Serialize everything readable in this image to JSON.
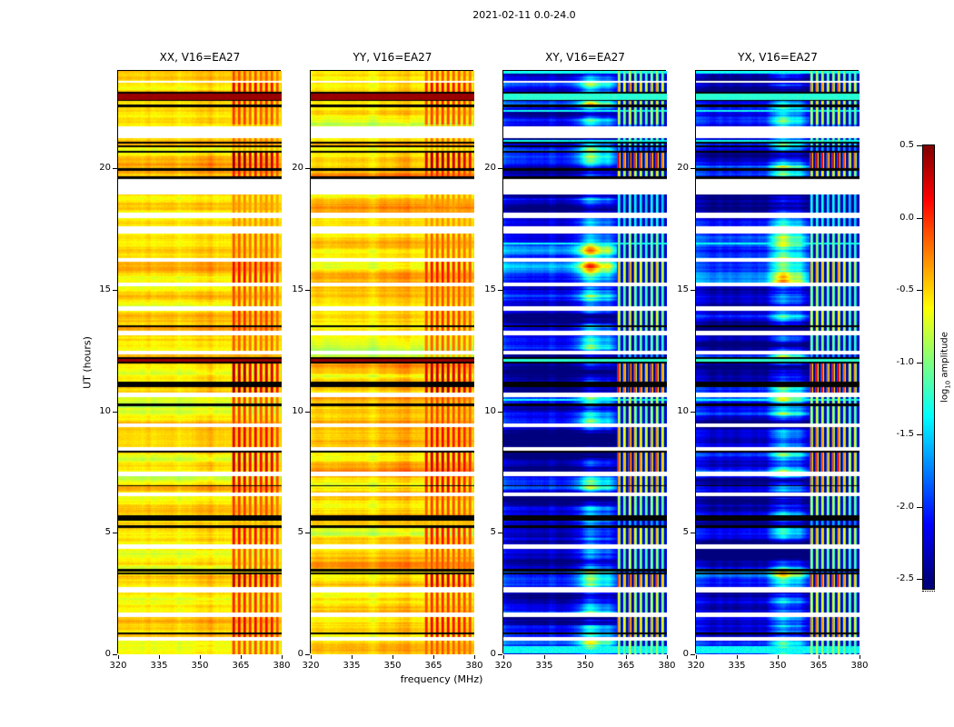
{
  "figure": {
    "title": "2021-02-11 0.0-24.0"
  },
  "chart_data": {
    "type": "heatmap",
    "title": "2021-02-11 0.0-24.0",
    "xlabel": "frequency (MHz)",
    "ylabel": "UT (hours)",
    "x_range": [
      320,
      380
    ],
    "x_ticks": [
      320,
      335,
      350,
      365,
      380
    ],
    "y_range": [
      0,
      24
    ],
    "y_ticks": [
      0,
      5,
      10,
      15,
      20
    ],
    "colormap": "jet",
    "panels": [
      {
        "title": "XX, V16=EA27",
        "pol": "XX"
      },
      {
        "title": "YY, V16=EA27",
        "pol": "YY"
      },
      {
        "title": "XY, V16=EA27",
        "pol": "XY"
      },
      {
        "title": "YX, V16=EA27",
        "pol": "YX"
      }
    ],
    "colorbar": {
      "label_prefix": "log",
      "label_sub": "10",
      "label_suffix": " amplitude",
      "range": [
        -2.5,
        0.5
      ],
      "ticks": [
        0.5,
        0.0,
        -0.5,
        -1.0,
        -1.5,
        -2.0,
        -2.5
      ]
    },
    "features": {
      "auto_background_level": -0.55,
      "cross_background_level": -2.35,
      "rfi_stripes": {
        "band_mhz": [
          361.5,
          380
        ],
        "first_mhz": 362.4,
        "spacing_mhz": 2.0
      },
      "cross_cyan_column_mhz": [
        346,
        360
      ],
      "white_bands": [
        [
          23.5,
          23.58
        ],
        [
          21.25,
          21.72
        ],
        [
          18.92,
          19.55
        ],
        [
          17.95,
          18.15
        ],
        [
          17.3,
          17.62
        ],
        [
          16.14,
          16.3
        ],
        [
          15.14,
          15.3
        ],
        [
          14.14,
          14.3
        ],
        [
          13.14,
          13.3
        ],
        [
          12.32,
          12.5
        ],
        [
          10.58,
          10.78
        ],
        [
          9.34,
          9.5
        ],
        [
          8.37,
          8.52
        ],
        [
          7.34,
          7.5
        ],
        [
          6.5,
          6.66
        ],
        [
          4.34,
          4.52
        ],
        [
          2.55,
          2.76
        ],
        [
          1.55,
          1.72
        ],
        [
          0.55,
          0.7
        ]
      ],
      "black_lines": [
        [
          23.08,
          23.14
        ],
        [
          22.76,
          22.82
        ],
        [
          22.5,
          22.6
        ],
        [
          21.0,
          21.07
        ],
        [
          20.86,
          20.93
        ],
        [
          20.62,
          20.7
        ],
        [
          19.9,
          20.0
        ],
        [
          19.57,
          19.66
        ],
        [
          13.47,
          13.53
        ],
        [
          12.16,
          12.21
        ],
        [
          11.96,
          12.02
        ],
        [
          11.0,
          11.2
        ],
        [
          10.22,
          10.32
        ],
        [
          8.3,
          8.37
        ],
        [
          6.9,
          6.96
        ],
        [
          5.5,
          5.72
        ],
        [
          5.2,
          5.3
        ],
        [
          3.42,
          3.5
        ],
        [
          3.28,
          3.35
        ],
        [
          0.83,
          0.89
        ]
      ],
      "red_rows": [
        [
          22.82,
          23.08
        ],
        [
          12.02,
          12.16
        ]
      ],
      "cyan_rows": [
        [
          23.9,
          24.0
        ],
        [
          22.3,
          22.38
        ],
        [
          21.08,
          21.15
        ],
        [
          16.85,
          16.92
        ],
        [
          10.42,
          10.5
        ],
        [
          0.05,
          0.35
        ]
      ],
      "rfi_time_bands": [
        [
          23.58,
          24.0,
          0.55
        ],
        [
          23.14,
          23.58,
          0.8
        ],
        [
          22.6,
          22.76,
          0.7
        ],
        [
          21.78,
          22.5,
          0.6
        ],
        [
          20.93,
          21.25,
          0.45
        ],
        [
          20.0,
          20.62,
          1.0
        ],
        [
          19.66,
          19.9,
          0.7
        ],
        [
          18.15,
          18.92,
          0.3
        ],
        [
          17.62,
          17.95,
          0.3
        ],
        [
          16.3,
          17.3,
          0.5
        ],
        [
          15.3,
          16.14,
          0.75
        ],
        [
          14.3,
          15.14,
          0.55
        ],
        [
          13.3,
          14.14,
          0.65
        ],
        [
          12.5,
          13.14,
          0.5
        ],
        [
          11.2,
          11.96,
          0.95
        ],
        [
          10.78,
          11.0,
          1.0
        ],
        [
          9.5,
          10.58,
          0.6
        ],
        [
          8.52,
          9.34,
          0.8
        ],
        [
          7.5,
          8.3,
          0.9
        ],
        [
          6.66,
          7.34,
          0.8
        ],
        [
          5.72,
          6.5,
          0.6
        ],
        [
          4.52,
          5.2,
          0.75
        ],
        [
          3.5,
          4.34,
          0.55
        ],
        [
          2.76,
          3.28,
          0.9
        ],
        [
          1.72,
          2.55,
          0.65
        ],
        [
          0.7,
          1.55,
          0.8
        ],
        [
          0.0,
          0.55,
          0.55
        ]
      ],
      "cross_light_bands": [
        [
          15.3,
          17.5,
          0.3
        ],
        [
          0.0,
          1.2,
          0.25
        ],
        [
          2.76,
          3.5,
          0.25
        ],
        [
          21.78,
          22.5,
          0.2
        ],
        [
          9.5,
          10.58,
          0.15
        ]
      ]
    }
  }
}
